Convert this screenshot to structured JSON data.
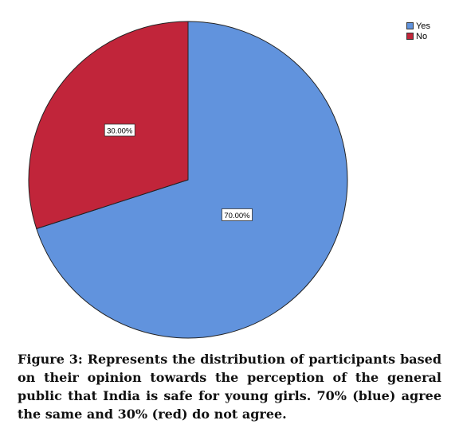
{
  "chart_data": {
    "type": "pie",
    "categories": [
      "Yes",
      "No"
    ],
    "values": [
      70.0,
      30.0
    ],
    "data_labels": [
      "70.00%",
      "30.00%"
    ],
    "colors": [
      "#6193dd",
      "#c1253a"
    ],
    "legend_position": "top-right",
    "start": "top, clockwise"
  },
  "legend": {
    "items": [
      {
        "label": "Yes",
        "color": "#6193dd"
      },
      {
        "label": "No",
        "color": "#c1253a"
      }
    ]
  },
  "caption": {
    "text": "Figure 3: Represents the distribution of participants based on their opinion towards the perception of the general public that India is safe for young girls. 70% (blue) agree the same and 30% (red) do not agree."
  }
}
